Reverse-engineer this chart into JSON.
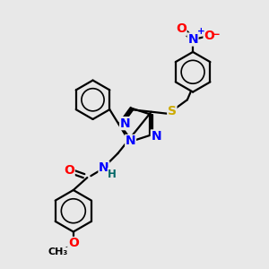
{
  "bg_color": "#e8e8e8",
  "atom_colors": {
    "C": "#000000",
    "N": "#0000ff",
    "O": "#ff0000",
    "S": "#ccaa00",
    "H": "#006666",
    "N_plus": "#0000ff",
    "O_minus": "#ff0000"
  },
  "bond_color": "#000000",
  "bond_width": 1.6,
  "font_size_atom": 10,
  "font_size_small": 8.5,
  "xlim": [
    0.5,
    9.5
  ],
  "ylim": [
    0.5,
    10.0
  ]
}
